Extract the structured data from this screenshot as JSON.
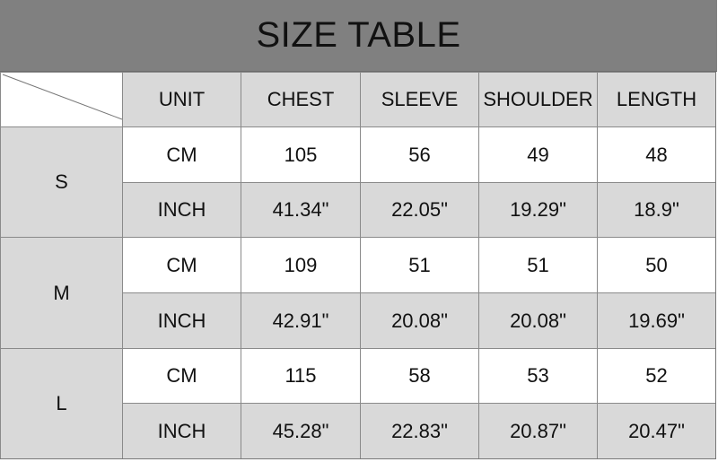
{
  "title": "SIZE TABLE",
  "colors": {
    "title_bar": "#808080",
    "gray_cell": "#d9d9d9",
    "white_cell": "#ffffff"
  },
  "headers": [
    "UNIT",
    "CHEST",
    "SLEEVE",
    "SHOULDER",
    "LENGTH"
  ],
  "sizes": [
    {
      "size": "S",
      "rows": [
        {
          "unit": "CM",
          "values": [
            "105",
            "56",
            "49",
            "48"
          ]
        },
        {
          "unit": "INCH",
          "values": [
            "41.34\"",
            "22.05\"",
            "19.29\"",
            "18.9\""
          ]
        }
      ]
    },
    {
      "size": "M",
      "rows": [
        {
          "unit": "CM",
          "values": [
            "109",
            "51",
            "51",
            "50"
          ]
        },
        {
          "unit": "INCH",
          "values": [
            "42.91\"",
            "20.08\"",
            "20.08\"",
            "19.69\""
          ]
        }
      ]
    },
    {
      "size": "L",
      "rows": [
        {
          "unit": "CM",
          "values": [
            "115",
            "58",
            "53",
            "52"
          ]
        },
        {
          "unit": "INCH",
          "values": [
            "45.28\"",
            "22.83\"",
            "20.87\"",
            "20.47\""
          ]
        }
      ]
    }
  ]
}
